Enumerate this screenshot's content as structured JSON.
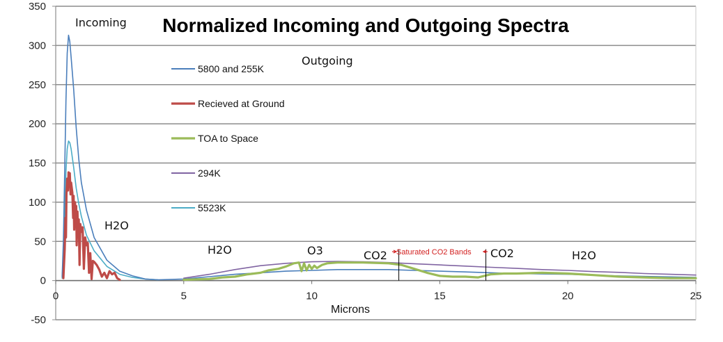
{
  "chart_data": {
    "type": "line",
    "title": "Normalized Incoming and Outgoing  Spectra",
    "xlabel": "Microns",
    "ylabel": "",
    "xlim": [
      0,
      25
    ],
    "ylim": [
      -50,
      350
    ],
    "x_ticks": [
      0,
      5,
      10,
      15,
      20,
      25
    ],
    "y_ticks": [
      -50,
      0,
      50,
      100,
      150,
      200,
      250,
      300,
      350
    ],
    "grid": "horizontal",
    "legend_position": "upper-left",
    "series": [
      {
        "name": "5800 and 255K",
        "color": "#4a7ebb",
        "width": 1.6,
        "points": [
          [
            0.25,
            5
          ],
          [
            0.3,
            50
          ],
          [
            0.35,
            140
          ],
          [
            0.4,
            230
          ],
          [
            0.45,
            290
          ],
          [
            0.5,
            313
          ],
          [
            0.55,
            305
          ],
          [
            0.6,
            285
          ],
          [
            0.7,
            245
          ],
          [
            0.8,
            195
          ],
          [
            0.9,
            155
          ],
          [
            1.0,
            125
          ],
          [
            1.2,
            90
          ],
          [
            1.5,
            55
          ],
          [
            2.0,
            26
          ],
          [
            2.5,
            12
          ],
          [
            3.0,
            6
          ],
          [
            3.5,
            2
          ],
          [
            4.0,
            1
          ],
          [
            5.0,
            2
          ],
          [
            6.0,
            5
          ],
          [
            7.0,
            8
          ],
          [
            8.0,
            10
          ],
          [
            9.0,
            12
          ],
          [
            10.0,
            13
          ],
          [
            11.0,
            14
          ],
          [
            12.0,
            14
          ],
          [
            13.0,
            14
          ],
          [
            14.0,
            13
          ],
          [
            15.0,
            12
          ],
          [
            16.0,
            11
          ],
          [
            17.0,
            10
          ],
          [
            18.0,
            9
          ],
          [
            20.0,
            8
          ],
          [
            22.0,
            6
          ],
          [
            25.0,
            4
          ]
        ]
      },
      {
        "name": "Recieved at Ground",
        "color": "#be4b48",
        "width": 3.2,
        "points": [
          [
            0.3,
            3
          ],
          [
            0.35,
            40
          ],
          [
            0.38,
            80
          ],
          [
            0.4,
            55
          ],
          [
            0.42,
            110
          ],
          [
            0.45,
            130
          ],
          [
            0.48,
            115
          ],
          [
            0.5,
            138
          ],
          [
            0.53,
            120
          ],
          [
            0.55,
            137
          ],
          [
            0.58,
            110
          ],
          [
            0.6,
            125
          ],
          [
            0.65,
            112
          ],
          [
            0.68,
            80
          ],
          [
            0.7,
            108
          ],
          [
            0.72,
            65
          ],
          [
            0.75,
            100
          ],
          [
            0.78,
            88
          ],
          [
            0.8,
            95
          ],
          [
            0.82,
            45
          ],
          [
            0.85,
            88
          ],
          [
            0.88,
            58
          ],
          [
            0.9,
            78
          ],
          [
            0.93,
            20
          ],
          [
            0.96,
            72
          ],
          [
            1.0,
            62
          ],
          [
            1.05,
            68
          ],
          [
            1.1,
            15
          ],
          [
            1.15,
            55
          ],
          [
            1.2,
            45
          ],
          [
            1.25,
            48
          ],
          [
            1.3,
            10
          ],
          [
            1.35,
            35
          ],
          [
            1.4,
            2
          ],
          [
            1.45,
            25
          ],
          [
            1.5,
            24
          ],
          [
            1.6,
            20
          ],
          [
            1.7,
            14
          ],
          [
            1.8,
            5
          ],
          [
            1.9,
            10
          ],
          [
            2.0,
            3
          ],
          [
            2.1,
            12
          ],
          [
            2.2,
            8
          ],
          [
            2.3,
            10
          ],
          [
            2.4,
            3
          ],
          [
            2.5,
            1
          ]
        ]
      },
      {
        "name": "TOA to Space",
        "color": "#9bbb59",
        "width": 3.2,
        "points": [
          [
            5.0,
            1
          ],
          [
            6.0,
            2
          ],
          [
            6.5,
            4
          ],
          [
            7.0,
            5
          ],
          [
            7.5,
            8
          ],
          [
            8.0,
            10
          ],
          [
            8.3,
            13
          ],
          [
            8.7,
            15
          ],
          [
            9.0,
            18
          ],
          [
            9.3,
            22
          ],
          [
            9.5,
            23
          ],
          [
            9.6,
            12
          ],
          [
            9.7,
            22
          ],
          [
            9.8,
            13
          ],
          [
            9.9,
            20
          ],
          [
            10.0,
            15
          ],
          [
            10.1,
            19
          ],
          [
            10.2,
            16
          ],
          [
            10.4,
            20
          ],
          [
            10.6,
            22
          ],
          [
            11.0,
            23
          ],
          [
            12.0,
            23
          ],
          [
            13.0,
            22
          ],
          [
            13.5,
            20
          ],
          [
            14.0,
            15
          ],
          [
            14.5,
            10
          ],
          [
            15.0,
            6
          ],
          [
            15.5,
            5
          ],
          [
            16.0,
            5
          ],
          [
            16.5,
            4
          ],
          [
            17.0,
            8
          ],
          [
            17.5,
            9
          ],
          [
            18.0,
            9
          ],
          [
            19.0,
            10
          ],
          [
            20.0,
            9
          ],
          [
            21.0,
            7
          ],
          [
            22.0,
            5
          ],
          [
            23.0,
            4
          ],
          [
            24.0,
            3
          ],
          [
            25.0,
            3
          ]
        ]
      },
      {
        "name": "294K",
        "color": "#8064a2",
        "width": 1.6,
        "points": [
          [
            5.0,
            3
          ],
          [
            6.0,
            8
          ],
          [
            7.0,
            14
          ],
          [
            8.0,
            19
          ],
          [
            9.0,
            22
          ],
          [
            10.0,
            24
          ],
          [
            11.0,
            24.5
          ],
          [
            12.0,
            24
          ],
          [
            13.0,
            23
          ],
          [
            14.0,
            21.5
          ],
          [
            15.0,
            20
          ],
          [
            16.0,
            18.5
          ],
          [
            17.0,
            17
          ],
          [
            18.0,
            15.5
          ],
          [
            19.0,
            14
          ],
          [
            20.0,
            13
          ],
          [
            21.0,
            11.5
          ],
          [
            22.0,
            10.5
          ],
          [
            23.0,
            9
          ],
          [
            24.0,
            8
          ],
          [
            25.0,
            7
          ]
        ]
      },
      {
        "name": "5523K",
        "color": "#4bacc6",
        "width": 1.6,
        "points": [
          [
            0.25,
            3
          ],
          [
            0.3,
            30
          ],
          [
            0.35,
            90
          ],
          [
            0.4,
            140
          ],
          [
            0.45,
            168
          ],
          [
            0.5,
            178
          ],
          [
            0.55,
            176
          ],
          [
            0.6,
            168
          ],
          [
            0.7,
            145
          ],
          [
            0.8,
            118
          ],
          [
            0.9,
            98
          ],
          [
            1.0,
            82
          ],
          [
            1.2,
            58
          ],
          [
            1.5,
            38
          ],
          [
            2.0,
            18
          ],
          [
            2.5,
            8
          ],
          [
            3.0,
            4
          ],
          [
            3.5,
            2
          ],
          [
            4.0,
            1
          ]
        ]
      }
    ],
    "annotations": [
      {
        "id": "incoming",
        "text": "Incoming"
      },
      {
        "id": "outgoing",
        "text": "Outgoing"
      },
      {
        "id": "h2o-a",
        "text": "H2O"
      },
      {
        "id": "h2o-b",
        "text": "H2O"
      },
      {
        "id": "o3",
        "text": "O3"
      },
      {
        "id": "co2-a",
        "text": "CO2"
      },
      {
        "id": "saturated",
        "text": "Saturated CO2 Bands"
      },
      {
        "id": "co2-b",
        "text": "CO2"
      },
      {
        "id": "h2o-c",
        "text": "H2O"
      }
    ],
    "vertical_markers": [
      13.4,
      16.8
    ]
  }
}
